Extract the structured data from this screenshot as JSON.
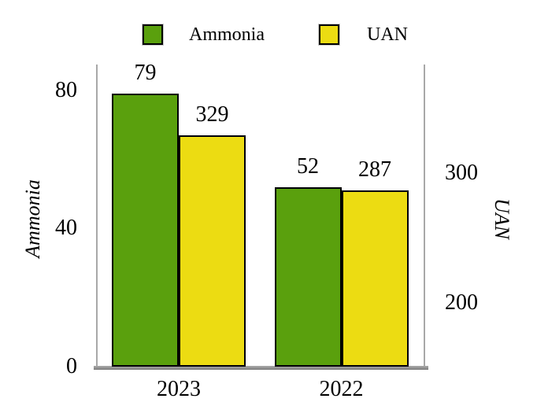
{
  "legend": {
    "items": [
      {
        "label": "Ammonia",
        "color": "#5aa00d"
      },
      {
        "label": "UAN",
        "color": "#ecdc12"
      }
    ]
  },
  "chart_data": {
    "type": "bar",
    "categories": [
      "2023",
      "2022"
    ],
    "series": [
      {
        "name": "Ammonia",
        "axis": "left",
        "color": "#5aa00d",
        "values": [
          79,
          52
        ]
      },
      {
        "name": "UAN",
        "axis": "right",
        "color": "#ecdc12",
        "values": [
          329,
          287
        ]
      }
    ],
    "left_axis": {
      "label": "Ammonia",
      "ticks": [
        0,
        40,
        80
      ],
      "min": 0,
      "max": 87.5
    },
    "right_axis": {
      "label": "UAN",
      "ticks": [
        200,
        300
      ],
      "min": 150.5,
      "max": 384
    },
    "legend_position": "top",
    "grid": false,
    "bar_value_labels": true,
    "axis_line_color": "#a8a8a8",
    "bar_border_color": "#000000"
  }
}
